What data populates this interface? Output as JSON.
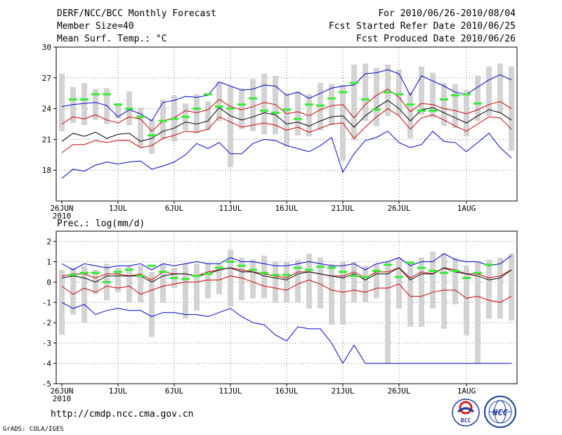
{
  "header": {
    "title": "DERF/NCC/BCC Monthly Forecast",
    "member_size": "Member Size=40",
    "variable": "Mean Surf. Temp.: °C",
    "period": "For 2010/06/26-2010/08/04",
    "fcst_started": "Fcst Started Refer Date 2010/06/25",
    "fcst_produced": "Fcst Produced Date 2010/06/26"
  },
  "footer": {
    "url": "http://cmdp.ncc.cma.gov.cn",
    "grads": "GrADS: COLA/IGES",
    "logo_bcc": "BCC",
    "logo_ncc": "NCC"
  },
  "chart_data": [
    {
      "type": "line",
      "title": "Mean Surf. Temp.: °C",
      "x_start_day": 0,
      "x_ticks": [
        {
          "day": 0,
          "label": "26JUN",
          "sub": "2010"
        },
        {
          "day": 5,
          "label": "1JUL"
        },
        {
          "day": 10,
          "label": "6JUL"
        },
        {
          "day": 15,
          "label": "11JUL"
        },
        {
          "day": 20,
          "label": "16JUL"
        },
        {
          "day": 25,
          "label": "21JUL"
        },
        {
          "day": 30,
          "label": "26JUL"
        },
        {
          "day": 36,
          "label": "1AUG"
        }
      ],
      "ylim": [
        15,
        30
      ],
      "y_ticks": [
        18,
        21,
        24,
        27,
        30
      ],
      "series": [
        {
          "name": "max",
          "color": "#0000cc",
          "values": [
            24.2,
            24.4,
            24.5,
            24.6,
            24.3,
            23.2,
            23.9,
            23.5,
            22.8,
            24.6,
            24.8,
            25.2,
            25.1,
            25.3,
            26.6,
            26.2,
            25.8,
            25.9,
            26.3,
            26.2,
            25.3,
            25.6,
            25.0,
            25.5,
            26.0,
            26.2,
            26.3,
            27.4,
            27.5,
            27.8,
            27.4,
            25.3,
            27.2,
            26.7,
            26.2,
            25.6,
            25.4,
            26.1,
            26.8,
            27.3,
            26.8
          ]
        },
        {
          "name": "upper",
          "color": "#cc0000",
          "values": [
            22.5,
            23.2,
            23.0,
            23.4,
            22.9,
            22.6,
            23.2,
            23.0,
            21.8,
            22.8,
            23.1,
            23.8,
            23.6,
            23.9,
            24.9,
            24.2,
            23.9,
            24.2,
            24.6,
            24.4,
            23.5,
            23.7,
            23.3,
            23.9,
            24.3,
            24.4,
            23.1,
            24.4,
            25.3,
            25.9,
            25.1,
            23.7,
            24.5,
            24.4,
            24.0,
            23.8,
            23.5,
            23.9,
            24.4,
            24.7,
            24.0
          ]
        },
        {
          "name": "mean",
          "color": "#000000",
          "values": [
            20.8,
            21.6,
            21.3,
            21.7,
            21.1,
            21.5,
            21.6,
            20.8,
            21.1,
            21.8,
            22.1,
            22.7,
            22.5,
            22.8,
            24.1,
            23.3,
            22.9,
            23.2,
            23.6,
            23.4,
            22.5,
            22.7,
            22.3,
            22.8,
            23.2,
            23.3,
            22.2,
            23.3,
            24.1,
            24.8,
            24.0,
            22.8,
            23.9,
            24.1,
            23.6,
            23.1,
            22.6,
            23.3,
            23.9,
            23.6,
            22.9
          ]
        },
        {
          "name": "lower",
          "color": "#cc0000",
          "values": [
            19.7,
            20.5,
            20.5,
            20.9,
            20.7,
            20.9,
            20.9,
            20.2,
            20.4,
            21.1,
            21.4,
            21.8,
            21.7,
            22.0,
            23.2,
            22.7,
            22.2,
            22.4,
            22.6,
            22.4,
            21.9,
            22.2,
            21.7,
            22.1,
            22.5,
            22.6,
            21.1,
            22.2,
            23.2,
            24.0,
            23.3,
            22.0,
            23.1,
            23.4,
            22.9,
            22.3,
            21.8,
            22.5,
            23.2,
            23.1,
            22.0
          ]
        },
        {
          "name": "min",
          "color": "#0000cc",
          "values": [
            17.2,
            18.1,
            17.9,
            18.5,
            18.8,
            18.6,
            18.8,
            18.9,
            18.1,
            18.4,
            18.8,
            19.5,
            20.6,
            20.1,
            20.7,
            19.6,
            19.6,
            20.6,
            21.0,
            20.9,
            20.4,
            20.1,
            19.8,
            20.4,
            21.2,
            17.8,
            19.6,
            20.9,
            21.2,
            21.8,
            20.7,
            20.2,
            20.5,
            21.8,
            20.8,
            20.7,
            19.8,
            20.7,
            21.6,
            20.2,
            19.2
          ]
        }
      ],
      "bars": {
        "color": "#d3d3d3",
        "low": [
          21.8,
          22.6,
          22.4,
          22.9,
          22.5,
          23.0,
          22.4,
          20.2,
          19.6,
          21.1,
          20.8,
          21.9,
          21.6,
          21.9,
          22.8,
          18.3,
          22.0,
          21.8,
          21.5,
          21.5,
          20.3,
          21.4,
          21.3,
          21.9,
          22.4,
          18.9,
          20.9,
          22.8,
          22.3,
          23.3,
          23.4,
          21.1,
          23.4,
          23.1,
          22.3,
          22.1,
          21.3,
          22.8,
          23.3,
          23.6,
          19.9
        ],
        "high": [
          27.4,
          26.1,
          26.5,
          25.9,
          26.0,
          24.5,
          25.7,
          24.1,
          23.0,
          24.9,
          25.3,
          24.5,
          25.4,
          24.7,
          26.6,
          26.2,
          26.0,
          26.9,
          27.4,
          27.2,
          25.5,
          25.7,
          25.4,
          26.5,
          26.4,
          26.3,
          28.3,
          28.4,
          28.0,
          28.3,
          27.8,
          25.6,
          28.1,
          27.5,
          26.5,
          26.4,
          25.8,
          27.2,
          28.1,
          28.4,
          28.1
        ]
      },
      "control": {
        "color": "#33ee33",
        "values": [
          24.9,
          24.9,
          25.4,
          25.4,
          24.4,
          24.0,
          23.2,
          21.4,
          22.8,
          23.0,
          23.2,
          24.0,
          25.4,
          24.2,
          24.0,
          24.4,
          25.0,
          23.8,
          23.6,
          23.9,
          23.0,
          24.4,
          24.3,
          25.0,
          25.6,
          26.5,
          24.9,
          23.9,
          25.6,
          25.4,
          24.4,
          23.8,
          23.8,
          24.9,
          25.3,
          25.4,
          24.5
        ]
      }
    },
    {
      "type": "line",
      "title": "Prec.: log(mm/d)",
      "x_ticks": [
        {
          "day": 0,
          "label": "26JUN",
          "sub": "2010"
        },
        {
          "day": 5,
          "label": "1JUL"
        },
        {
          "day": 10,
          "label": "6JUL"
        },
        {
          "day": 15,
          "label": "11JUL"
        },
        {
          "day": 20,
          "label": "16JUL"
        },
        {
          "day": 25,
          "label": "21JUL"
        },
        {
          "day": 30,
          "label": "26JUL"
        },
        {
          "day": 36,
          "label": "1AUG"
        }
      ],
      "ylim": [
        -5,
        2.5
      ],
      "y_ticks": [
        -5,
        -4,
        -3,
        -2,
        -1,
        0,
        1,
        2
      ],
      "series": [
        {
          "name": "max",
          "color": "#0000cc",
          "values": [
            0.9,
            0.6,
            0.9,
            0.8,
            0.7,
            0.8,
            0.8,
            0.9,
            0.6,
            0.9,
            0.8,
            0.9,
            1.0,
            0.9,
            0.9,
            1.2,
            1.0,
            1.0,
            0.9,
            0.8,
            0.8,
            0.9,
            1.0,
            0.9,
            0.8,
            0.8,
            0.9,
            0.6,
            0.9,
            1.0,
            1.2,
            0.8,
            1.0,
            1.0,
            1.4,
            1.1,
            1.0,
            1.0,
            0.8,
            0.9,
            1.3
          ]
        },
        {
          "name": "upper",
          "color": "#cc0000",
          "values": [
            0.3,
            0.4,
            0.4,
            0.2,
            0.4,
            0.4,
            0.3,
            0.4,
            0.1,
            0.5,
            0.4,
            0.4,
            0.3,
            0.5,
            0.6,
            0.7,
            0.6,
            0.5,
            0.4,
            0.3,
            0.2,
            0.5,
            0.5,
            0.4,
            0.3,
            0.3,
            0.5,
            0.2,
            0.5,
            0.5,
            0.7,
            0.2,
            0.5,
            0.4,
            0.7,
            0.6,
            0.4,
            0.4,
            0.2,
            0.3,
            0.6
          ]
        },
        {
          "name": "mean",
          "color": "#000000",
          "values": [
            0.2,
            0.3,
            0.2,
            0.0,
            0.3,
            0.3,
            0.3,
            0.3,
            0.0,
            0.3,
            0.4,
            0.4,
            0.3,
            0.4,
            0.6,
            0.7,
            0.5,
            0.5,
            0.3,
            0.2,
            0.1,
            0.4,
            0.5,
            0.4,
            0.3,
            0.2,
            0.4,
            0.1,
            0.4,
            0.4,
            0.7,
            0.1,
            0.4,
            0.4,
            0.7,
            0.5,
            0.4,
            0.3,
            0.1,
            0.2,
            0.6
          ]
        },
        {
          "name": "lower",
          "color": "#cc0000",
          "values": [
            -0.2,
            -0.6,
            -0.3,
            -0.5,
            -0.2,
            -0.3,
            -0.2,
            -0.6,
            -0.4,
            -0.2,
            -0.1,
            0.0,
            0.0,
            0.1,
            0.1,
            0.3,
            0.2,
            0.0,
            -0.2,
            -0.3,
            -0.4,
            -0.1,
            0.1,
            -0.1,
            -0.4,
            -0.5,
            -0.4,
            -0.5,
            -0.3,
            -0.3,
            -0.1,
            -0.7,
            -0.7,
            -0.5,
            -0.4,
            -0.4,
            -0.8,
            -0.7,
            -0.9,
            -1.0,
            -0.7
          ]
        },
        {
          "name": "min",
          "color": "#0000cc",
          "values": [
            -1.0,
            -1.3,
            -1.1,
            -1.6,
            -1.4,
            -1.3,
            -1.4,
            -1.4,
            -1.7,
            -1.5,
            -1.5,
            -1.6,
            -1.6,
            -1.7,
            -1.5,
            -1.3,
            -1.7,
            -2.0,
            -2.1,
            -2.6,
            -2.9,
            -2.2,
            -2.3,
            -2.3,
            -3.0,
            -4.0,
            -3.1,
            -4.0,
            -4.0,
            -4.0,
            -4.0,
            -4.0,
            -4.0,
            -4.0,
            -4.0,
            -4.0,
            -4.0,
            -4.0,
            -4.0,
            -4.0,
            -4.0
          ]
        }
      ],
      "bars": {
        "color": "#d3d3d3",
        "low": [
          -2.6,
          -1.6,
          -2.0,
          -0.6,
          -0.9,
          -0.5,
          -1.0,
          -1.0,
          -2.7,
          -1.0,
          -0.3,
          -1.8,
          -1.4,
          -0.8,
          -0.6,
          -1.2,
          -0.9,
          -0.8,
          -0.8,
          -1.0,
          -1.0,
          -1.0,
          -1.3,
          -1.3,
          -2.1,
          -2.1,
          -1.0,
          -1.0,
          -0.8,
          -4.0,
          -1.3,
          -2.2,
          -2.2,
          -1.3,
          -2.3,
          -1.1,
          -2.6,
          -4.0,
          -1.8,
          -1.8,
          -1.9
        ],
        "high": [
          0.6,
          0.7,
          0.8,
          0.6,
          0.9,
          0.7,
          0.8,
          0.8,
          0.5,
          0.9,
          0.7,
          0.9,
          0.9,
          0.9,
          0.9,
          1.6,
          1.2,
          1.1,
          1.3,
          1.0,
          1.0,
          1.1,
          1.4,
          1.2,
          0.9,
          1.0,
          1.0,
          0.8,
          0.9,
          1.0,
          1.2,
          0.9,
          1.2,
          1.5,
          1.4,
          1.2,
          0.8,
          1.0,
          1.1,
          1.2,
          1.4
        ]
      },
      "control": {
        "color": "#33ee33",
        "values": [
          0.35,
          0.45,
          0.45,
          0.0,
          0.5,
          0.6,
          0.3,
          0.8,
          0.5,
          0.2,
          0.15,
          0.3,
          0.4,
          0.7,
          1.0,
          0.8,
          0.6,
          0.45,
          0.35,
          0.35,
          0.7,
          0.6,
          0.75,
          0.7,
          0.5,
          0.3,
          0.25,
          0.55,
          0.85,
          0.25,
          0.95,
          0.7,
          0.55,
          0.45,
          0.55,
          0.2,
          0.45,
          0.85
        ]
      }
    }
  ]
}
